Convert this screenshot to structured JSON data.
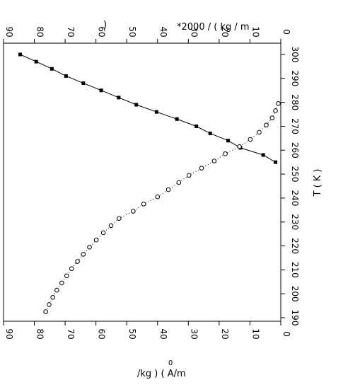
{
  "chart_data": {
    "type": "scatter",
    "orientation": "rotated",
    "xlabel_top": "*2000 / ( kg / m",
    "xlabel_top_fragment": ")",
    "xlabel_bottom": "/kg )   ( A/m",
    "xlabel_bottom_sup": "0",
    "ylabel": "T ( K )",
    "xlim": [
      90,
      0
    ],
    "ylim": [
      190,
      305
    ],
    "x_ticks": [
      "90",
      "80",
      "70",
      "60",
      "50",
      "40",
      "30",
      "20",
      "10",
      "0"
    ],
    "x_tick_values": [
      90,
      80,
      70,
      60,
      50,
      40,
      30,
      20,
      10,
      0
    ],
    "y_ticks": [
      "190",
      "200",
      "210",
      "220",
      "230",
      "240",
      "250",
      "260",
      "270",
      "280",
      "290",
      "300"
    ],
    "y_tick_values": [
      190,
      200,
      210,
      220,
      230,
      240,
      250,
      260,
      270,
      280,
      290,
      300
    ],
    "grid": false,
    "series": [
      {
        "marker": "square-filled",
        "line": "solid",
        "points": [
          [
            84.6,
            300
          ],
          [
            79.4,
            297
          ],
          [
            74.3,
            294
          ],
          [
            69.7,
            291
          ],
          [
            64.1,
            288
          ],
          [
            58.3,
            285
          ],
          [
            52.6,
            282
          ],
          [
            46.9,
            279
          ],
          [
            40.3,
            276
          ],
          [
            33.7,
            273
          ],
          [
            27.4,
            270
          ],
          [
            22.9,
            267
          ],
          [
            17.1,
            264
          ],
          [
            13.1,
            261
          ],
          [
            5.7,
            258
          ],
          [
            1.7,
            255
          ]
        ]
      },
      {
        "marker": "circle-open",
        "line": "dotted",
        "points": [
          [
            76.3,
            192.5
          ],
          [
            75.2,
            195.5
          ],
          [
            74.0,
            198.5
          ],
          [
            72.7,
            201.5
          ],
          [
            71.1,
            204.5
          ],
          [
            69.5,
            207.5
          ],
          [
            67.9,
            210.5
          ],
          [
            66.0,
            213.5
          ],
          [
            64.1,
            216.5
          ],
          [
            62.1,
            219.5
          ],
          [
            59.9,
            222.5
          ],
          [
            57.6,
            225.5
          ],
          [
            55.1,
            228.5
          ],
          [
            52.5,
            231.5
          ],
          [
            47.9,
            234.5
          ],
          [
            44.5,
            237.5
          ],
          [
            40.0,
            240.5
          ],
          [
            36.5,
            243.5
          ],
          [
            33.1,
            246.5
          ],
          [
            29.8,
            249.5
          ],
          [
            25.7,
            252.5
          ],
          [
            21.6,
            255.5
          ],
          [
            18.0,
            258.5
          ],
          [
            13.4,
            261.5
          ],
          [
            9.9,
            264.5
          ],
          [
            7.0,
            267.5
          ],
          [
            4.7,
            270.5
          ],
          [
            2.8,
            273.5
          ],
          [
            1.7,
            276.5
          ],
          [
            0.8,
            279.5
          ]
        ]
      }
    ]
  }
}
